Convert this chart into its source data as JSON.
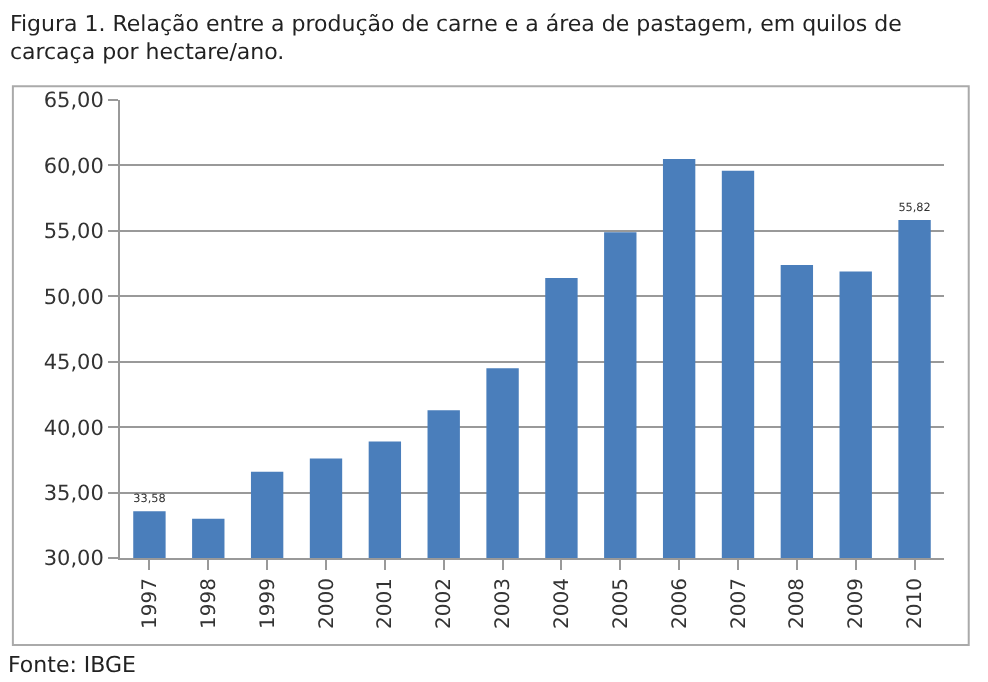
{
  "chart_data": {
    "type": "bar",
    "title": "Figura 1. Relação entre a produção de carne e a área de pastagem, em quilos de carcaça por hectare/ano.",
    "categories": [
      "1997",
      "1998",
      "1999",
      "2000",
      "2001",
      "2002",
      "2003",
      "2004",
      "2005",
      "2006",
      "2007",
      "2008",
      "2009",
      "2010"
    ],
    "values": [
      33.58,
      33.0,
      36.6,
      37.6,
      38.9,
      41.3,
      44.5,
      51.4,
      54.9,
      60.5,
      59.6,
      52.4,
      51.9,
      55.82
    ],
    "value_labels": [
      "33,58",
      null,
      null,
      null,
      null,
      null,
      null,
      null,
      null,
      null,
      null,
      null,
      null,
      "55,82"
    ],
    "color": "#4a7ebb",
    "ylim": [
      30,
      65
    ],
    "yticks": [
      {
        "value": 30,
        "label": "30,00"
      },
      {
        "value": 35,
        "label": "35,00"
      },
      {
        "value": 40,
        "label": "40,00"
      },
      {
        "value": 45,
        "label": "45,00"
      },
      {
        "value": 50,
        "label": "50,00"
      },
      {
        "value": 55,
        "label": "55,00"
      },
      {
        "value": 60,
        "label": "60,00"
      },
      {
        "value": 65,
        "label": "65,00"
      }
    ],
    "grid": "y",
    "annotations": [
      "Fonte: IBGE"
    ]
  }
}
